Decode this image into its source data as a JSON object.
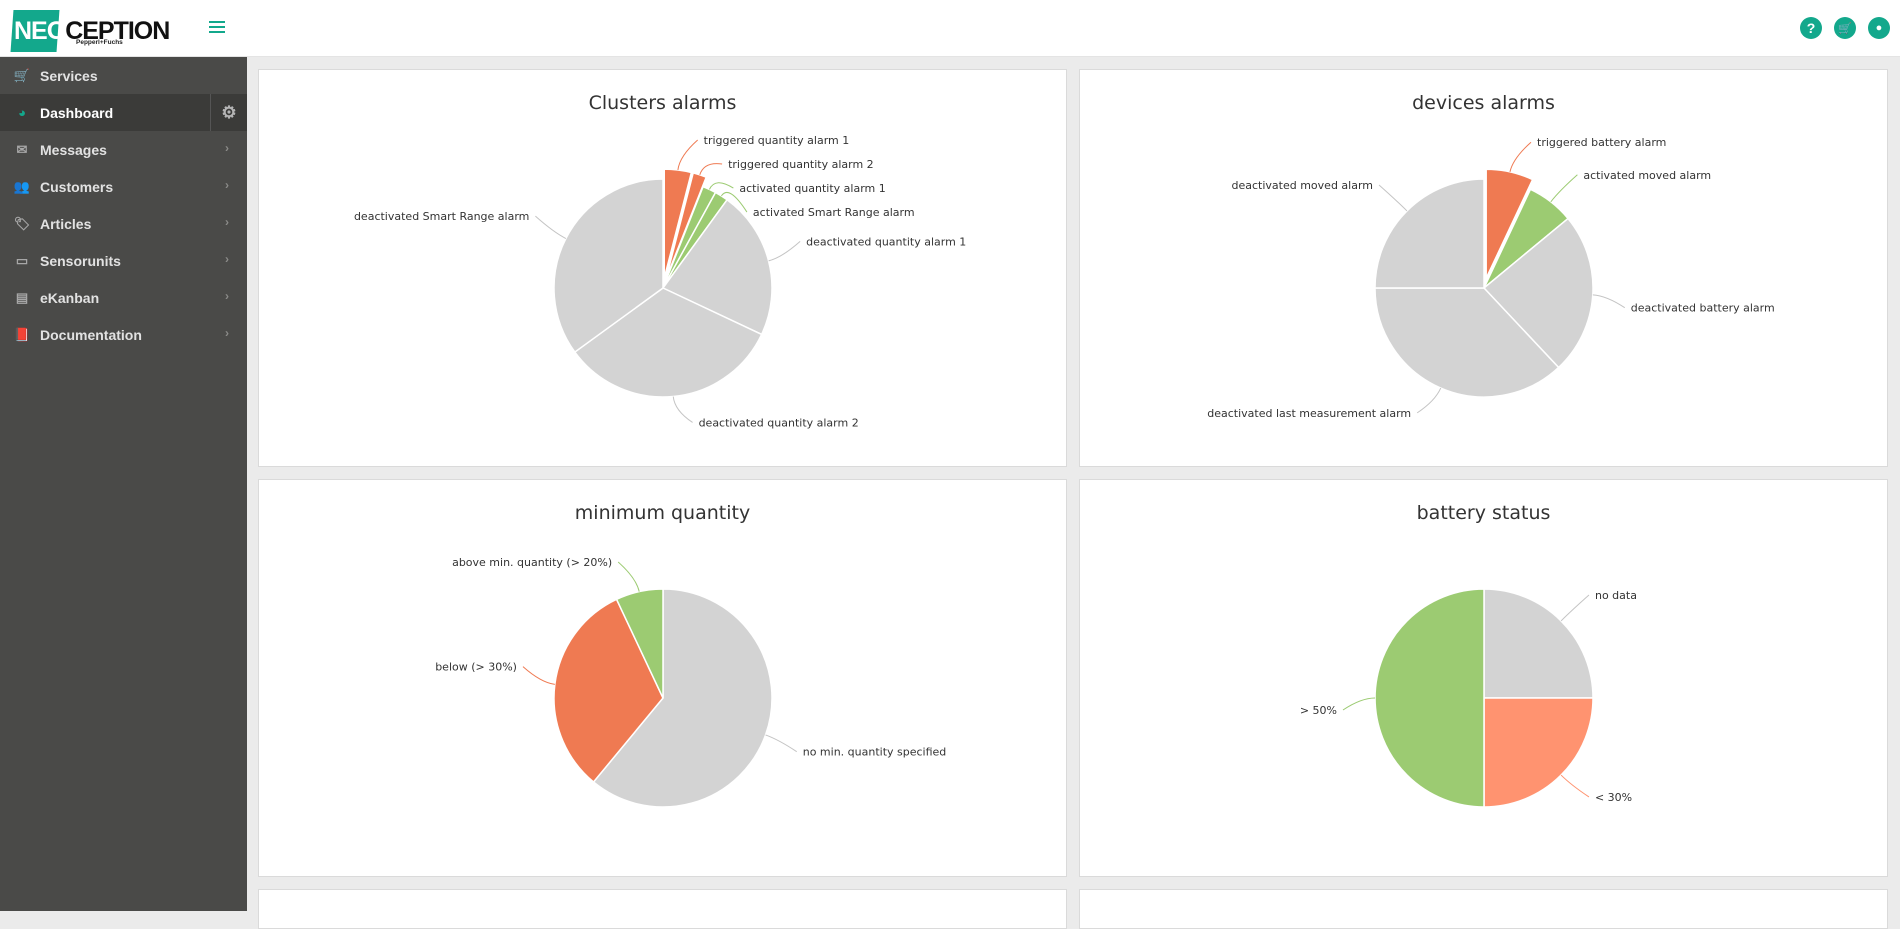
{
  "app": {
    "logo_main": "NEO",
    "logo_main2": "CEPTION",
    "logo_sub": "Pepperl+Fuchs"
  },
  "header": {
    "icons": [
      "help-icon",
      "cart-icon",
      "user-icon"
    ],
    "icon_glyphs": [
      "?",
      "🛒",
      "●"
    ]
  },
  "sidebar": {
    "items": [
      {
        "label": "Services",
        "icon": "cart-icon",
        "glyph": "🛒",
        "chevron": false
      },
      {
        "label": "Dashboard",
        "icon": "pie-chart-icon",
        "glyph": "◕",
        "chevron": false,
        "active": true
      },
      {
        "label": "Messages",
        "icon": "envelope-icon",
        "glyph": "✉",
        "chevron": true
      },
      {
        "label": "Customers",
        "icon": "users-icon",
        "glyph": "👥",
        "chevron": true
      },
      {
        "label": "Articles",
        "icon": "tags-icon",
        "glyph": "🏷",
        "chevron": true
      },
      {
        "label": "Sensorunits",
        "icon": "drive-icon",
        "glyph": "▭",
        "chevron": true
      },
      {
        "label": "eKanban",
        "icon": "stack-icon",
        "glyph": "▤",
        "chevron": true
      },
      {
        "label": "Documentation",
        "icon": "book-icon",
        "glyph": "📕",
        "chevron": true
      }
    ],
    "chevron_glyph": "›",
    "gear_glyph": "⚙"
  },
  "colors": {
    "accent": "#13a88c",
    "triggered": "#ef7a52",
    "activated": "#9ccb72",
    "deactivated": "#d3d3d3",
    "low": "#ff9370"
  },
  "chart_data": [
    {
      "type": "pie",
      "title": "Clusters alarms",
      "slices": [
        {
          "label": "triggered quantity alarm 1",
          "value": 4,
          "color": "#ef7a52",
          "sliced": true
        },
        {
          "label": "triggered quantity alarm 2",
          "value": 2,
          "color": "#ef7a52",
          "sliced": true
        },
        {
          "label": "activated quantity alarm 1",
          "value": 2,
          "color": "#9ccb72",
          "sliced": false
        },
        {
          "label": "activated Smart Range alarm",
          "value": 2,
          "color": "#9ccb72",
          "sliced": false
        },
        {
          "label": "deactivated quantity alarm 1",
          "value": 22,
          "color": "#d3d3d3",
          "sliced": false
        },
        {
          "label": "deactivated quantity alarm 2",
          "value": 33,
          "color": "#d3d3d3",
          "sliced": false
        },
        {
          "label": "deactivated Smart Range alarm",
          "value": 35,
          "color": "#d3d3d3",
          "sliced": false
        }
      ]
    },
    {
      "type": "pie",
      "title": "devices alarms",
      "slices": [
        {
          "label": "triggered battery alarm",
          "value": 7,
          "color": "#ef7a52",
          "sliced": true
        },
        {
          "label": "activated moved alarm",
          "value": 7,
          "color": "#9ccb72",
          "sliced": false
        },
        {
          "label": "deactivated battery alarm",
          "value": 24,
          "color": "#d3d3d3",
          "sliced": false
        },
        {
          "label": "deactivated last measurement alarm",
          "value": 37,
          "color": "#d3d3d3",
          "sliced": false
        },
        {
          "label": "deactivated moved alarm",
          "value": 25,
          "color": "#d3d3d3",
          "sliced": false
        }
      ]
    },
    {
      "type": "pie",
      "title": "minimum quantity",
      "slices": [
        {
          "label": "no min. quantity specified",
          "value": 61,
          "color": "#d3d3d3",
          "sliced": false
        },
        {
          "label": "below (> 30%)",
          "value": 32,
          "color": "#ef7a52",
          "sliced": false
        },
        {
          "label": "above min. quantity (> 20%)",
          "value": 7,
          "color": "#9ccb72",
          "sliced": false
        }
      ]
    },
    {
      "type": "pie",
      "title": "battery status",
      "slices": [
        {
          "label": "no data",
          "value": 25,
          "color": "#d3d3d3",
          "sliced": false
        },
        {
          "label": "< 30%",
          "value": 25,
          "color": "#ff9370",
          "sliced": false
        },
        {
          "label": "> 50%",
          "value": 50,
          "color": "#9ccb72",
          "sliced": false
        }
      ]
    }
  ]
}
